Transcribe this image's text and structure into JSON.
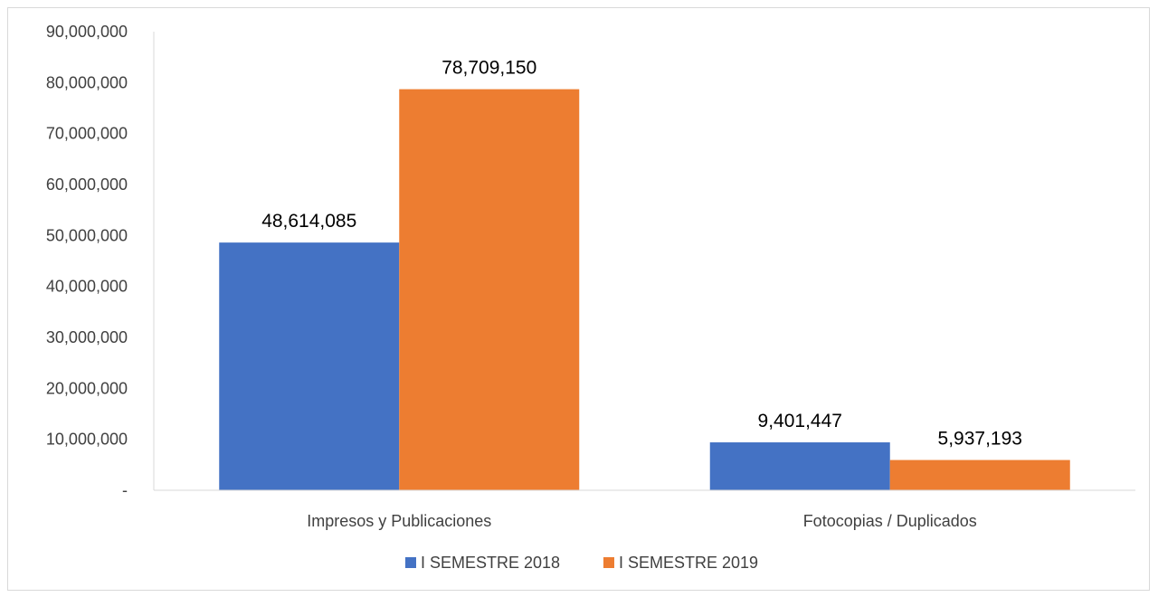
{
  "chart_data": {
    "type": "bar",
    "categories": [
      "Impresos y Publicaciones",
      "Fotocopias / Duplicados"
    ],
    "series": [
      {
        "name": "I SEMESTRE 2018",
        "color": "#4472c4",
        "values": [
          48614085,
          9401447
        ],
        "labels": [
          "48,614,085",
          "9,401,447"
        ]
      },
      {
        "name": "I SEMESTRE 2019",
        "color": "#ed7d31",
        "values": [
          78709150,
          5937193
        ],
        "labels": [
          "78,709,150",
          "5,937,193"
        ]
      }
    ],
    "ylim": [
      0,
      90000000
    ],
    "yticks": [
      0,
      10000000,
      20000000,
      30000000,
      40000000,
      50000000,
      60000000,
      70000000,
      80000000,
      90000000
    ],
    "ytick_labels": [
      "-",
      "10,000,000",
      "20,000,000",
      "30,000,000",
      "40,000,000",
      "50,000,000",
      "60,000,000",
      "70,000,000",
      "80,000,000",
      "90,000,000"
    ],
    "gridlines": false,
    "legend_position": "bottom",
    "title": "",
    "xlabel": "",
    "ylabel": ""
  }
}
